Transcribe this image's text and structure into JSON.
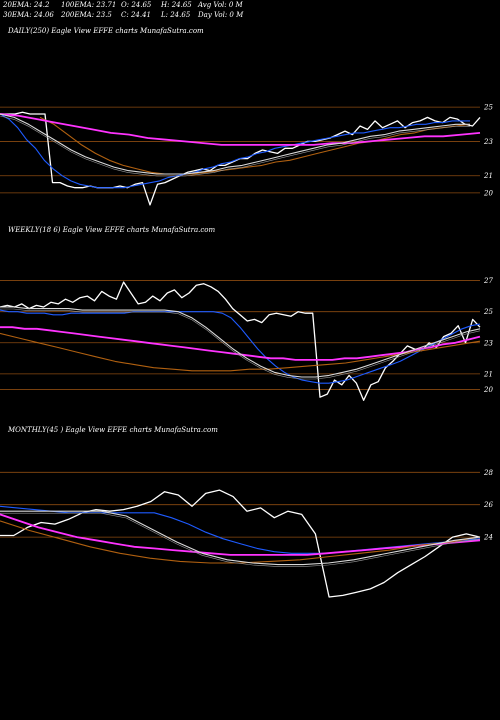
{
  "header": {
    "row1": [
      "20EMA: 24.2",
      "100EMA: 23.71",
      "O: 24.65",
      "H: 24.65",
      "Avg Vol: 0  M"
    ],
    "row2": [
      "30EMA: 24.06",
      "200EMA: 23.5",
      "C: 24.41",
      "L: 24.65",
      "Day Vol: 0  M"
    ]
  },
  "colors": {
    "background": "#000000",
    "gridline": "#8a4a10",
    "price": "#ffffff",
    "ema_fast": "#1e5bff",
    "ema_slow": "#ff33ff",
    "ema_mid": "#b06010",
    "ema_thin": "#d9d9d9"
  },
  "chart_data": [
    {
      "type": "line",
      "label": "DAILY(250) Eagle  View EFFE charts MunafaSutra.com",
      "ticks": [
        25,
        23,
        21,
        20
      ],
      "series": [
        {
          "color": "#ffffff",
          "values": [
            24.6,
            24.6,
            24.6,
            24.7,
            24.6,
            24.6,
            24.6,
            20.6,
            20.6,
            20.4,
            20.3,
            20.3,
            20.4,
            20.3,
            20.3,
            20.3,
            20.4,
            20.3,
            20.5,
            20.6,
            19.3,
            20.5,
            20.6,
            20.8,
            21.0,
            21.2,
            21.3,
            21.4,
            21.3,
            21.6,
            21.6,
            21.8,
            22.0,
            22.0,
            22.3,
            22.5,
            22.4,
            22.3,
            22.6,
            22.6,
            22.8,
            23.0,
            23.0,
            23.1,
            23.2,
            23.4,
            23.6,
            23.4,
            23.9,
            23.7,
            24.2,
            23.8,
            24.0,
            24.2,
            23.8,
            24.1,
            24.2,
            24.4,
            24.2,
            24.1,
            24.4,
            24.3,
            24.0,
            23.9,
            24.4
          ]
        },
        {
          "color": "#1e5bff",
          "values": [
            24.6,
            24.3,
            23.8,
            23.1,
            22.6,
            21.9,
            21.4,
            21.0,
            20.7,
            20.5,
            20.4,
            20.3,
            20.3,
            20.3,
            20.3,
            20.4,
            20.5,
            20.6,
            20.7,
            20.9,
            21.0,
            21.1,
            21.2,
            21.4,
            21.5,
            21.7,
            21.8,
            22.0,
            22.1,
            22.3,
            22.4,
            22.6,
            22.7,
            22.8,
            22.9,
            23.0,
            23.1,
            23.2,
            23.3,
            23.4,
            23.5,
            23.5,
            23.6,
            23.7,
            23.8,
            23.8,
            23.9,
            24.0,
            24.0,
            24.1,
            24.1,
            24.2,
            24.2,
            24.2
          ]
        },
        {
          "color": "#b06010",
          "values": [
            24.4,
            24.0,
            23.4,
            22.8,
            22.3,
            21.9,
            21.6,
            21.4,
            21.2,
            21.1,
            21.1,
            21.1,
            21.2,
            21.3,
            21.4,
            21.5,
            21.6,
            21.8,
            21.9,
            22.1,
            22.3,
            22.5,
            22.7,
            22.9,
            23.0,
            23.2,
            23.4,
            23.5,
            23.7,
            23.8,
            23.9,
            24.0
          ]
        },
        {
          "color": "#ff33ff",
          "values": [
            24.6,
            24.5,
            24.3,
            24.1,
            23.9,
            23.7,
            23.5,
            23.4,
            23.2,
            23.1,
            23.0,
            22.9,
            22.8,
            22.8,
            22.8,
            22.8,
            22.8,
            22.8,
            22.9,
            22.9,
            23.0,
            23.1,
            23.2,
            23.3,
            23.3,
            23.4,
            23.5
          ]
        },
        {
          "color": "#d9d9d9",
          "values": [
            24.6,
            24.4,
            24.0,
            23.5,
            23.0,
            22.5,
            22.1,
            21.8,
            21.5,
            21.3,
            21.2,
            21.1,
            21.1,
            21.1,
            21.2,
            21.3,
            21.5,
            21.6,
            21.8,
            22.0,
            22.2,
            22.4,
            22.6,
            22.8,
            22.9,
            23.1,
            23.3,
            23.4,
            23.6,
            23.7,
            23.8,
            23.9,
            24.0,
            24.0
          ]
        }
      ]
    },
    {
      "type": "line",
      "label": "WEEKLY(18          6) Eagle  View EFFE charts MunafaSutra.com",
      "ticks": [
        27,
        25,
        23,
        21,
        20
      ],
      "series": [
        {
          "color": "#ffffff",
          "values": [
            25.3,
            25.4,
            25.3,
            25.5,
            25.2,
            25.4,
            25.3,
            25.6,
            25.5,
            25.8,
            25.6,
            25.9,
            26.0,
            25.7,
            26.3,
            26.0,
            25.8,
            26.9,
            26.2,
            25.5,
            25.6,
            26.0,
            25.7,
            26.2,
            26.4,
            25.9,
            26.2,
            26.7,
            26.8,
            26.6,
            26.3,
            25.8,
            25.2,
            24.8,
            24.4,
            24.5,
            24.3,
            24.8,
            24.9,
            24.8,
            24.7,
            25.0,
            24.9,
            24.9,
            19.5,
            19.7,
            20.6,
            20.3,
            20.9,
            20.4,
            19.3,
            20.3,
            20.5,
            21.4,
            21.8,
            22.3,
            22.8,
            22.6,
            22.5,
            23.0,
            22.7,
            23.4,
            23.6,
            24.1,
            23.0,
            24.5,
            24.0
          ]
        },
        {
          "color": "#1e5bff",
          "values": [
            25.1,
            25.0,
            25.0,
            24.9,
            24.9,
            24.9,
            24.8,
            24.8,
            24.9,
            24.9,
            24.9,
            24.9,
            24.9,
            24.9,
            24.9,
            25.0,
            25.0,
            25.0,
            25.0,
            25.0,
            25.0,
            25.0,
            25.0,
            25.0,
            25.0,
            24.9,
            24.6,
            24.0,
            23.3,
            22.6,
            22.0,
            21.5,
            21.1,
            20.8,
            20.6,
            20.5,
            20.4,
            20.4,
            20.5,
            20.6,
            20.8,
            21.0,
            21.2,
            21.4,
            21.6,
            21.8,
            22.1,
            22.4,
            22.7,
            23.0,
            23.3,
            23.6,
            23.9,
            24.1,
            24.2
          ]
        },
        {
          "color": "#ff33ff",
          "values": [
            24.0,
            24.0,
            23.9,
            23.9,
            23.8,
            23.7,
            23.6,
            23.5,
            23.4,
            23.3,
            23.2,
            23.1,
            23.0,
            22.9,
            22.8,
            22.7,
            22.6,
            22.5,
            22.4,
            22.3,
            22.2,
            22.1,
            22.0,
            22.0,
            21.9,
            21.9,
            21.9,
            21.9,
            22.0,
            22.0,
            22.1,
            22.2,
            22.3,
            22.4,
            22.6,
            22.7,
            22.9,
            23.0,
            23.2,
            23.4
          ]
        },
        {
          "color": "#b06010",
          "values": [
            23.6,
            23.3,
            23.0,
            22.7,
            22.4,
            22.1,
            21.8,
            21.6,
            21.4,
            21.3,
            21.2,
            21.2,
            21.2,
            21.3,
            21.3,
            21.4,
            21.5,
            21.6,
            21.7,
            21.9,
            22.1,
            22.3,
            22.5,
            22.7,
            22.9,
            23.1
          ]
        },
        {
          "color": "#d9d9d9",
          "values": [
            25.3,
            25.3,
            25.2,
            25.2,
            25.2,
            25.2,
            25.1,
            25.1,
            25.1,
            25.1,
            25.1,
            25.1,
            25.1,
            25.0,
            24.6,
            24.0,
            23.3,
            22.6,
            22.0,
            21.5,
            21.1,
            20.9,
            20.8,
            20.8,
            20.9,
            21.1,
            21.3,
            21.6,
            21.9,
            22.2,
            22.5,
            22.8,
            23.1,
            23.4,
            23.7,
            23.9
          ]
        }
      ]
    },
    {
      "type": "line",
      "label": "MONTHLY(45                   ) Eagle  View EFFE charts MunafaSutra.com",
      "ticks": [
        28,
        26,
        24
      ],
      "series": [
        {
          "color": "#ffffff",
          "values": [
            24.1,
            24.1,
            24.6,
            24.9,
            24.8,
            25.1,
            25.5,
            25.7,
            25.6,
            25.7,
            25.9,
            26.2,
            26.8,
            26.6,
            25.9,
            26.7,
            26.9,
            26.5,
            25.6,
            25.8,
            25.2,
            25.6,
            25.4,
            24.2,
            20.3,
            20.4,
            20.6,
            20.8,
            21.2,
            21.8,
            22.3,
            22.8,
            23.4,
            24.0,
            24.2,
            24.0
          ]
        },
        {
          "color": "#1e5bff",
          "values": [
            25.9,
            25.8,
            25.7,
            25.6,
            25.5,
            25.5,
            25.5,
            25.5,
            25.5,
            25.5,
            25.2,
            24.8,
            24.3,
            23.9,
            23.6,
            23.3,
            23.1,
            23.0,
            23.0,
            23.0,
            23.1,
            23.2,
            23.3,
            23.4,
            23.5,
            23.6,
            23.7,
            23.8,
            23.9
          ]
        },
        {
          "color": "#ff33ff",
          "values": [
            25.4,
            25.0,
            24.6,
            24.3,
            24.0,
            23.8,
            23.6,
            23.4,
            23.3,
            23.2,
            23.1,
            23.0,
            22.9,
            22.9,
            22.9,
            22.9,
            22.9,
            23.0,
            23.1,
            23.2,
            23.3,
            23.4,
            23.5,
            23.6,
            23.7,
            23.8
          ]
        },
        {
          "color": "#b06010",
          "values": [
            25.0,
            24.4,
            23.9,
            23.4,
            23.0,
            22.7,
            22.5,
            22.4,
            22.4,
            22.5,
            22.6,
            22.8,
            23.0,
            23.2,
            23.5,
            23.7,
            24.0
          ]
        },
        {
          "color": "#d9d9d9",
          "values": [
            25.6,
            25.6,
            25.6,
            25.6,
            25.6,
            25.3,
            24.5,
            23.7,
            23.0,
            22.6,
            22.4,
            22.3,
            22.3,
            22.4,
            22.6,
            22.9,
            23.2,
            23.5,
            23.8,
            24.0
          ]
        }
      ]
    }
  ]
}
